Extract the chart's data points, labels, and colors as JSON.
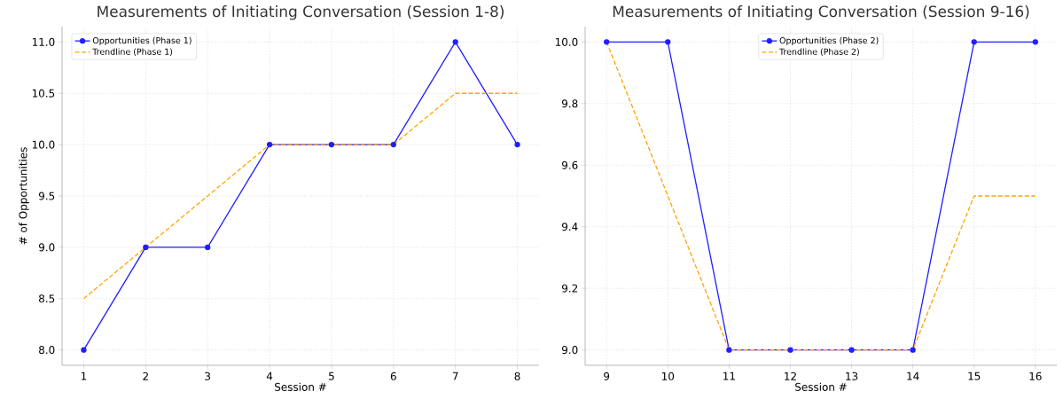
{
  "chart_data": [
    {
      "type": "line",
      "title": "Measurements of Initiating Conversation (Session 1-8)",
      "xlabel": "Session #",
      "ylabel": "# of Opportunities",
      "x": [
        1,
        2,
        3,
        4,
        5,
        6,
        7,
        8
      ],
      "series": [
        {
          "name": "Opportunities (Phase 1)",
          "color": "#1f1fff",
          "marker": "circle",
          "line_style": "solid",
          "values": [
            8,
            9,
            9,
            10,
            10,
            10,
            11,
            10
          ]
        },
        {
          "name": "Trendline (Phase 1)",
          "color": "#ffa500",
          "marker": "none",
          "line_style": "dashed",
          "values": [
            8.5,
            9,
            9.5,
            10,
            10,
            10,
            10.5,
            10.5
          ]
        }
      ],
      "xlim": [
        0.65,
        8.35
      ],
      "xticks": [
        1,
        2,
        3,
        4,
        5,
        6,
        7,
        8
      ],
      "ylim": [
        7.85,
        11.15
      ],
      "yticks": [
        {
          "value": 8,
          "label": "8.0"
        },
        {
          "value": 8.5,
          "label": "8.5"
        },
        {
          "value": 9,
          "label": "9.0"
        },
        {
          "value": 9.5,
          "label": "9.5"
        },
        {
          "value": 10,
          "label": "10.0"
        },
        {
          "value": 10.5,
          "label": "10.5"
        },
        {
          "value": 11,
          "label": "11.0"
        }
      ],
      "grid": true,
      "legend": "top left"
    },
    {
      "type": "line",
      "title": "Measurements of Initiating Conversation (Session 9-16)",
      "xlabel": "Session #",
      "x": [
        9,
        10,
        11,
        12,
        13,
        14,
        15,
        16
      ],
      "series": [
        {
          "name": "Opportunities (Phase 2)",
          "color": "#1f1fff",
          "marker": "circle",
          "line_style": "solid",
          "values": [
            10,
            10,
            9,
            9,
            9,
            9,
            10,
            10
          ]
        },
        {
          "name": "Trendline (Phase 2)",
          "color": "#ffa500",
          "marker": "none",
          "line_style": "dashed",
          "values": [
            10,
            9.5,
            9,
            9,
            9,
            9,
            9.5,
            9.5
          ]
        }
      ],
      "xlim": [
        8.65,
        16.35
      ],
      "xticks": [
        9,
        10,
        11,
        12,
        13,
        14,
        15,
        16
      ],
      "ylim": [
        8.95,
        10.05
      ],
      "yticks": [
        {
          "value": 9,
          "label": "9.0"
        },
        {
          "value": 9.2,
          "label": "9.2"
        },
        {
          "value": 9.4,
          "label": "9.4"
        },
        {
          "value": 9.6,
          "label": "9.6"
        },
        {
          "value": 9.8,
          "label": "9.8"
        },
        {
          "value": 10,
          "label": "10.0"
        }
      ],
      "grid": true,
      "legend": "top"
    }
  ]
}
